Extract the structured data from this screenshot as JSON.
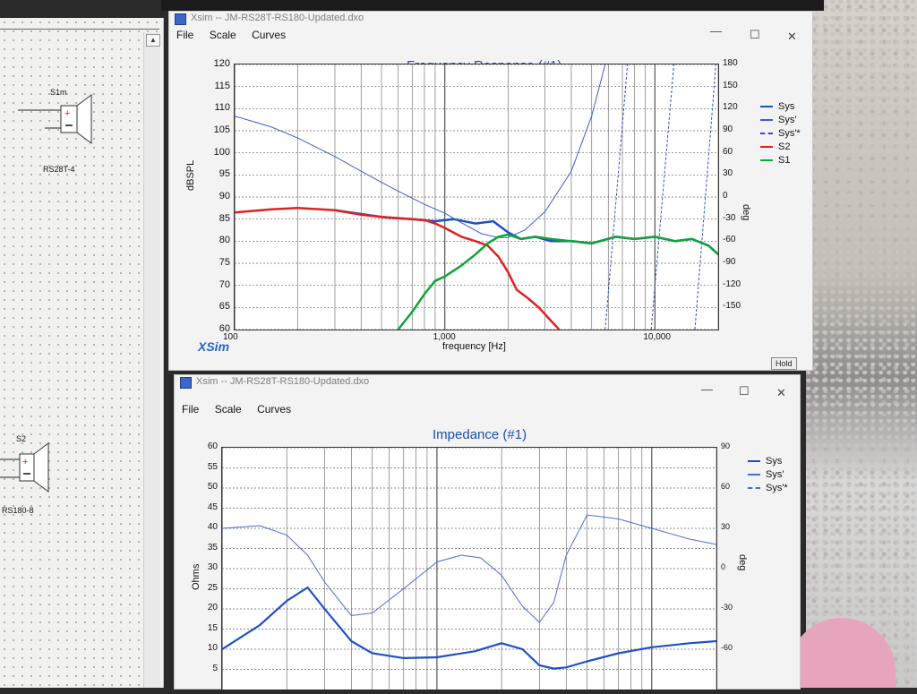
{
  "schematic": {
    "speakers": [
      {
        "name": "S1m",
        "part": "RS28T-4"
      },
      {
        "name": "S2",
        "part": "RS180-8"
      }
    ]
  },
  "freq_window": {
    "title": "Xsim -- JM-RS28T-RS180-Updated.dxo",
    "menu": [
      "File",
      "Scale",
      "Curves"
    ],
    "graph_title": "Frequency Response (#1)",
    "logo": "XSim",
    "hold_label": "Hold",
    "controls": {
      "min": "—",
      "max": "☐",
      "close": "✕"
    }
  },
  "imp_window": {
    "title": "Xsim -- JM-RS28T-RS180-Updated.dxo",
    "menu": [
      "File",
      "Scale",
      "Curves"
    ],
    "graph_title": "Impedance (#1)",
    "controls": {
      "min": "—",
      "max": "☐",
      "close": "✕"
    }
  },
  "chart_data": [
    {
      "type": "line",
      "title": "Frequency Response (#1)",
      "xlabel": "frequency [Hz]",
      "ylabel": "dBSPL",
      "y2label": "deg",
      "xscale": "log",
      "xlim": [
        100,
        20000
      ],
      "ylim": [
        60,
        120
      ],
      "y2lim": [
        -180,
        180
      ],
      "xtick_labels": [
        "100",
        "1,000",
        "10,000"
      ],
      "xtick_values": [
        100,
        1000,
        10000
      ],
      "ytick_values": [
        60,
        65,
        70,
        75,
        80,
        85,
        90,
        95,
        100,
        105,
        110,
        115,
        120
      ],
      "y2tick_values": [
        -150,
        -120,
        -90,
        -60,
        -30,
        0,
        30,
        60,
        90,
        120,
        150,
        180
      ],
      "grid": true,
      "legend": "right",
      "series": [
        {
          "name": "Sys",
          "axis": "left",
          "color": "#1f4fc7",
          "width": 2.5,
          "dash": "",
          "x": [
            300,
            500,
            700,
            900,
            1100,
            1400,
            1700,
            2000,
            2300,
            2700,
            3200,
            4000,
            5000,
            6500,
            8000,
            10000,
            12500,
            15000,
            18000,
            20000
          ],
          "y": [
            87,
            85.5,
            85,
            84.5,
            85,
            84,
            84.5,
            82,
            80.5,
            81,
            80,
            80,
            79.5,
            81,
            80.5,
            81,
            80,
            80.5,
            79,
            77
          ]
        },
        {
          "name": "Sys'",
          "axis": "right",
          "color": "#3a5fcc",
          "width": 1,
          "dash": "",
          "x": [
            100,
            150,
            200,
            300,
            400,
            500,
            600,
            800,
            1000,
            1200,
            1500,
            1800,
            2000,
            2400,
            3000,
            4000,
            5000,
            5800
          ],
          "y": [
            110,
            95,
            80,
            55,
            35,
            20,
            8,
            -10,
            -22,
            -35,
            -50,
            -55,
            -55,
            -45,
            -20,
            35,
            110,
            180
          ]
        },
        {
          "name": "Sys'*",
          "axis": "right",
          "color": "#2d52c2",
          "width": 1,
          "dash": "3,2",
          "segments": [
            {
              "x": [
                5800,
                7400
              ],
              "y": [
                -180,
                180
              ]
            },
            {
              "x": [
                9600,
                12300
              ],
              "y": [
                -180,
                180
              ]
            },
            {
              "x": [
                15500,
                19500
              ],
              "y": [
                -180,
                180
              ]
            }
          ]
        },
        {
          "name": "S2",
          "axis": "left",
          "color": "#e02020",
          "width": 2.5,
          "dash": "",
          "x": [
            100,
            150,
            200,
            300,
            400,
            500,
            600,
            700,
            800,
            900,
            1000,
            1200,
            1400,
            1600,
            1800,
            2000,
            2200,
            2500,
            2800,
            3200,
            3500
          ],
          "y": [
            86.5,
            87.2,
            87.5,
            87,
            86,
            85.5,
            85.2,
            85,
            84.8,
            84,
            83,
            81,
            80,
            79,
            76.5,
            73,
            69,
            67,
            65,
            62,
            60
          ]
        },
        {
          "name": "S1",
          "axis": "left",
          "color": "#12a23a",
          "width": 2.5,
          "dash": "",
          "x": [
            600,
            700,
            800,
            900,
            1000,
            1200,
            1400,
            1600,
            1800,
            2000,
            2300,
            2700,
            3200,
            4000,
            5000,
            6500,
            8000,
            10000,
            12500,
            15000,
            18000,
            20000
          ],
          "y": [
            60,
            64,
            68,
            71,
            72,
            74.5,
            77,
            79.5,
            81,
            81.5,
            80.5,
            81,
            80.5,
            80,
            79.5,
            81,
            80.5,
            81,
            80,
            80.5,
            79,
            77
          ]
        }
      ]
    },
    {
      "type": "line",
      "title": "Impedance (#1)",
      "xlabel": "",
      "ylabel": "Ohms",
      "y2label": "deg",
      "xscale": "log",
      "xlim": [
        100,
        20000
      ],
      "ylim": [
        0,
        60
      ],
      "y2lim": [
        -90,
        90
      ],
      "ytick_values": [
        5,
        10,
        15,
        20,
        25,
        30,
        35,
        40,
        45,
        50,
        55,
        60
      ],
      "y2tick_values": [
        -60,
        -30,
        0,
        30,
        60,
        90
      ],
      "grid": true,
      "legend": "right",
      "series": [
        {
          "name": "Sys",
          "axis": "left",
          "color": "#1f4fc7",
          "width": 2.2,
          "dash": "",
          "x": [
            100,
            150,
            200,
            250,
            300,
            400,
            500,
            700,
            1000,
            1500,
            2000,
            2500,
            3000,
            3500,
            4000,
            5000,
            7000,
            10000,
            15000,
            20000
          ],
          "y": [
            10,
            16,
            22,
            25.3,
            20,
            12,
            9,
            7.8,
            8,
            9.5,
            11.5,
            10,
            6,
            5.2,
            5.5,
            7,
            9,
            10.5,
            11.5,
            12
          ]
        },
        {
          "name": "Sys'",
          "axis": "right",
          "color": "#4a6cd0",
          "width": 1,
          "dash": "",
          "x": [
            100,
            150,
            200,
            250,
            300,
            400,
            500,
            700,
            1000,
            1300,
            1600,
            2000,
            2500,
            3000,
            3500,
            4000,
            5000,
            7000,
            10000,
            15000,
            20000
          ],
          "y": [
            30,
            32,
            25,
            10,
            -10,
            -35,
            -33,
            -15,
            5,
            10,
            8,
            -5,
            -28,
            -40,
            -25,
            10,
            40,
            37,
            30,
            22,
            18
          ]
        },
        {
          "name": "Sys'*",
          "axis": "right",
          "color": "#4a6cd0",
          "width": 1,
          "dash": "3,2",
          "x": [],
          "y": []
        }
      ]
    }
  ]
}
